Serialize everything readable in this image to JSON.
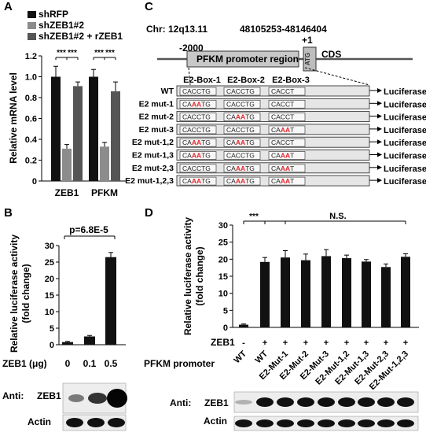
{
  "panels": {
    "A": {
      "letter": "A",
      "legend": [
        "shRFP",
        "shZEB1#2",
        "shZEB1#2 + rZEB1"
      ],
      "legend_colors": [
        "#111111",
        "#8c8c8c",
        "#555555"
      ],
      "ylabel": "Relative mRNA level",
      "yticks": [
        "0",
        "0.2",
        "0.4",
        "0.6",
        "0.8",
        "1.0",
        "1.2"
      ],
      "sig": [
        "***",
        "***",
        "***",
        "***"
      ]
    },
    "B": {
      "letter": "B",
      "ylabel_line1": "Relative luciferase activity",
      "ylabel_line2": "(fold change)",
      "yticks": [
        "0",
        "5",
        "10",
        "15",
        "20",
        "25",
        "30"
      ],
      "pvalue": "p=6.8E-5",
      "xaxis_label": "ZEB1 (μg)",
      "blot_anti": "Anti:",
      "blot_zeb1": "ZEB1",
      "blot_actin": "Actin"
    },
    "C": {
      "letter": "C",
      "chr_label": "Chr: 12q13.11",
      "coords": "48105253-48146404",
      "pos_start": "-2000",
      "pos_tss": "+1",
      "region_label": "PFKM promoter region",
      "atg": "ATG",
      "cds": "CDS",
      "box_headers": [
        "E2-Box-1",
        "E2-Box-2",
        "E2-Box-3"
      ],
      "luciferase": "Luciferase",
      "constructs": [
        {
          "name": "WT",
          "b1": [
            "CACCTG",
            "",
            ""
          ],
          "b2": [
            "CACCTG",
            "",
            ""
          ],
          "b3": [
            "CACCT",
            "",
            ""
          ]
        },
        {
          "name": "E2 mut-1",
          "b1": [
            "CA",
            "AA",
            "TG"
          ],
          "b2": [
            "CACCTG",
            "",
            ""
          ],
          "b3": [
            "CACCT",
            "",
            ""
          ]
        },
        {
          "name": "E2 mut-2",
          "b1": [
            "CACCTG",
            "",
            ""
          ],
          "b2": [
            "CA",
            "AA",
            "TG"
          ],
          "b3": [
            "CACCT",
            "",
            ""
          ]
        },
        {
          "name": "E2 mut-3",
          "b1": [
            "CACCTG",
            "",
            ""
          ],
          "b2": [
            "CACCTG",
            "",
            ""
          ],
          "b3": [
            "CA",
            "AA",
            "T"
          ]
        },
        {
          "name": "E2 mut-1,2",
          "b1": [
            "CA",
            "AA",
            "TG"
          ],
          "b2": [
            "CA",
            "AA",
            "TG"
          ],
          "b3": [
            "CACCT",
            "",
            ""
          ]
        },
        {
          "name": "E2 mut-1,3",
          "b1": [
            "CA",
            "AA",
            "TG"
          ],
          "b2": [
            "CACCTG",
            "",
            ""
          ],
          "b3": [
            "CA",
            "AA",
            "T"
          ]
        },
        {
          "name": "E2 mut-2,3",
          "b1": [
            "CACCTG",
            "",
            ""
          ],
          "b2": [
            "CA",
            "AA",
            "TG"
          ],
          "b3": [
            "CA",
            "AA",
            "T"
          ]
        },
        {
          "name": "E2 mut-1,2,3",
          "b1": [
            "CA",
            "AA",
            "TG"
          ],
          "b2": [
            "CA",
            "AA",
            "TG"
          ],
          "b3": [
            "CA",
            "AA",
            "T"
          ]
        }
      ]
    },
    "D": {
      "letter": "D",
      "ylabel_line1": "Relative luciferase activity",
      "ylabel_line2": "(fold change)",
      "yticks": [
        "0",
        "5",
        "10",
        "15",
        "20",
        "25",
        "30"
      ],
      "sig_main": "***",
      "sig_ns": "N.S.",
      "zeb1_row_label": "ZEB1",
      "zeb1_signs": [
        "-",
        "+",
        "+",
        "+",
        "+",
        "+",
        "+",
        "+",
        "+"
      ],
      "promoter_label": "PFKM  promoter",
      "promoter_names": [
        "WT",
        "WT",
        "E2-Mut-1",
        "E2-Mut-2",
        "E2-Mut-3",
        "E2-Mut-1,2",
        "E2-Mut-1,3",
        "E2-Mut-2,3",
        "E2-Mut-1,2,3"
      ],
      "blot_anti": "Anti:",
      "blot_zeb1": "ZEB1",
      "blot_actin": "Actin"
    }
  },
  "chart_data": [
    {
      "panel": "A",
      "type": "bar",
      "categories": [
        "ZEB1",
        "PFKM"
      ],
      "series": [
        {
          "name": "shRFP",
          "values": [
            1.0,
            1.0
          ],
          "errors": [
            0.1,
            0.07
          ]
        },
        {
          "name": "shZEB1#2",
          "values": [
            0.31,
            0.33
          ],
          "errors": [
            0.04,
            0.04
          ]
        },
        {
          "name": "shZEB1#2 + rZEB1",
          "values": [
            0.91,
            0.86
          ],
          "errors": [
            0.04,
            0.09
          ]
        }
      ],
      "ylabel": "Relative mRNA level",
      "ylim": [
        0,
        1.2
      ]
    },
    {
      "panel": "B",
      "type": "bar",
      "categories": [
        "0",
        "0.1",
        "0.5"
      ],
      "values": [
        0.8,
        2.5,
        26.5
      ],
      "errors": [
        0.2,
        0.3,
        1.4
      ],
      "ylabel": "Relative luciferase activity (fold change)",
      "xlabel": "ZEB1 (μg)",
      "ylim": [
        0,
        30
      ]
    },
    {
      "panel": "D",
      "type": "bar",
      "categories": [
        "WT",
        "WT",
        "E2-Mut-1",
        "E2-Mut-2",
        "E2-Mut-3",
        "E2-Mut-1,2",
        "E2-Mut-1,3",
        "E2-Mut-2,3",
        "E2-Mut-1,2,3"
      ],
      "values": [
        0.8,
        19.2,
        20.5,
        19.7,
        20.9,
        20.3,
        19.3,
        17.7,
        20.7
      ],
      "errors": [
        0.2,
        1.3,
        2.0,
        1.8,
        1.9,
        0.9,
        0.6,
        0.9,
        0.9
      ],
      "ylabel": "Relative luciferase activity (fold change)",
      "ylim": [
        0,
        30
      ]
    }
  ]
}
